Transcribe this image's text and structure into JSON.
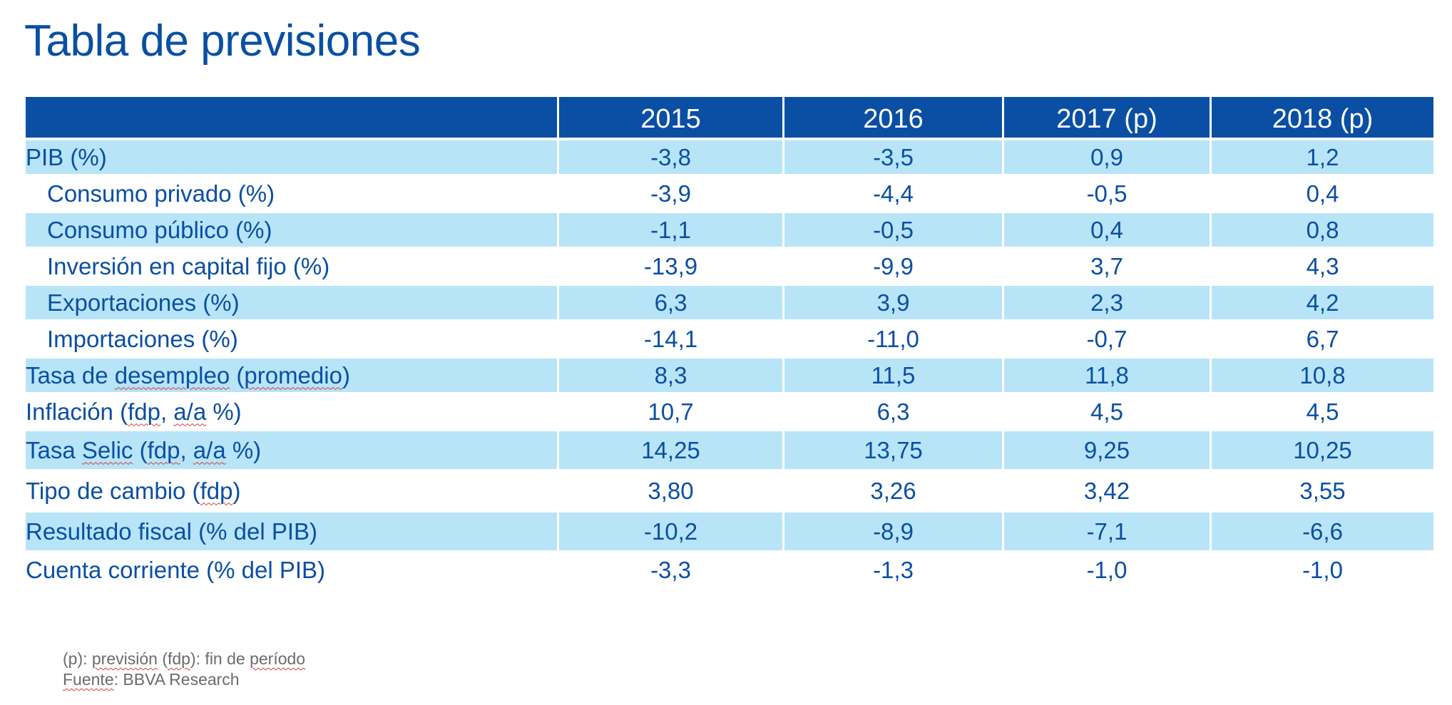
{
  "page": {
    "title": "Tabla de previsiones"
  },
  "table": {
    "columns": [
      "",
      "2015",
      "2016",
      "2017 (p)",
      "2018 (p)"
    ],
    "rows": [
      {
        "label": "PIB (%)",
        "values": [
          "-3,8",
          "-3,5",
          "0,9",
          "1,2"
        ]
      },
      {
        "label": "Consumo privado (%)",
        "values": [
          "-3,9",
          "-4,4",
          "-0,5",
          "0,4"
        ]
      },
      {
        "label": "Consumo público (%)",
        "values": [
          "-1,1",
          "-0,5",
          "0,4",
          "0,8"
        ]
      },
      {
        "label": "Inversión en capital fijo (%)",
        "values": [
          "-13,9",
          "-9,9",
          "3,7",
          "4,3"
        ]
      },
      {
        "label": "Exportaciones (%)",
        "values": [
          "6,3",
          "3,9",
          "2,3",
          "4,2"
        ]
      },
      {
        "label": "Importaciones (%)",
        "values": [
          "-14,1",
          "-11,0",
          "-0,7",
          "6,7"
        ]
      },
      {
        "label_parts": [
          "Tasa de ",
          "desempleo",
          " (",
          "promedio",
          ")"
        ],
        "values": [
          "8,3",
          "11,5",
          "11,8",
          "10,8"
        ]
      },
      {
        "label_parts": [
          "Inflación (",
          "fdp",
          ", ",
          "a/a",
          " %)"
        ],
        "values": [
          "10,7",
          "6,3",
          "4,5",
          "4,5"
        ]
      },
      {
        "label_parts": [
          "Tasa ",
          "Selic",
          " (",
          "fdp",
          ", ",
          "a/a",
          " %)"
        ],
        "values": [
          "14,25",
          "13,75",
          "9,25",
          "10,25"
        ]
      },
      {
        "label_parts": [
          "Tipo de cambio (",
          "fdp",
          ")"
        ],
        "values": [
          "3,80",
          "3,26",
          "3,42",
          "3,55"
        ]
      },
      {
        "label": "Resultado fiscal (% del PIB)",
        "values": [
          "-10,2",
          "-8,9",
          "-7,1",
          "-6,6"
        ]
      },
      {
        "label": "Cuenta corriente (% del PIB)",
        "values": [
          "-3,3",
          "-1,3",
          "-1,0",
          "-1,0"
        ]
      }
    ]
  },
  "footnote": {
    "line1_parts": [
      "(p): ",
      "previsión",
      " (",
      "fdp",
      "): fin de ",
      "período"
    ],
    "line2_parts": [
      "Fuente",
      ": BBVA Research"
    ]
  },
  "colors": {
    "header_bg": "#0a4fa3",
    "row_shade": "#b8e4f8",
    "text": "#0a4fa3",
    "footnote_text": "#6b6b6b"
  }
}
